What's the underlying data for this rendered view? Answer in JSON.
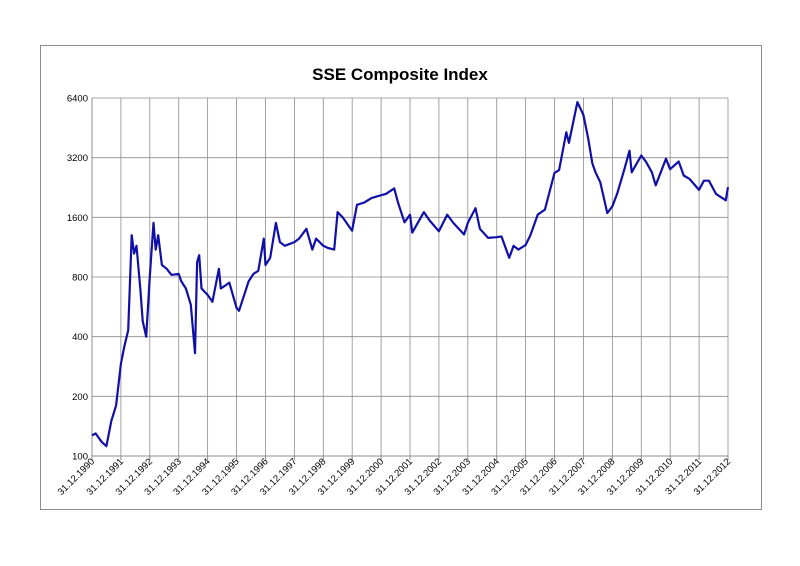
{
  "chart_data": {
    "type": "line",
    "title": "SSE Composite Index",
    "xlabel": "",
    "ylabel": "",
    "y_scale": "log2",
    "ylim": [
      100,
      6400
    ],
    "y_ticks": [
      100,
      200,
      400,
      800,
      1600,
      3200,
      6400
    ],
    "y_tick_labels": [
      "100",
      "200",
      "400",
      "800",
      "1600",
      "3200",
      "6400"
    ],
    "x_tick_labels": [
      "31.12.1990",
      "31.12.1991",
      "31.12.1992",
      "31.12.1993",
      "31.12.1994",
      "31.12.1995",
      "31.12.1996",
      "31.12.1997",
      "31.12.1998",
      "31.12.1999",
      "31.12.2000",
      "31.12.2001",
      "31.12.2002",
      "31.12.2003",
      "31.12.2004",
      "31.12.2005",
      "31.12.2006",
      "31.12.2007",
      "31.12.2008",
      "31.12.2009",
      "31.12.2010",
      "31.12.2011",
      "31.12.2012"
    ],
    "xlim": [
      "1990-12-31",
      "2012-12-31"
    ],
    "grid": true,
    "legend": "none",
    "color": "#1010a8",
    "series": [
      {
        "points": [
          [
            "1990-12-31",
            127
          ],
          [
            "1991-02-15",
            130
          ],
          [
            "1991-05-01",
            118
          ],
          [
            "1991-07-01",
            112
          ],
          [
            "1991-09-01",
            150
          ],
          [
            "1991-11-01",
            180
          ],
          [
            "1991-12-31",
            292
          ],
          [
            "1992-02-15",
            360
          ],
          [
            "1992-04-01",
            430
          ],
          [
            "1992-05-15",
            1300
          ],
          [
            "1992-06-15",
            1050
          ],
          [
            "1992-07-15",
            1150
          ],
          [
            "1992-09-01",
            700
          ],
          [
            "1992-10-01",
            480
          ],
          [
            "1992-11-15",
            400
          ],
          [
            "1993-01-01",
            820
          ],
          [
            "1993-02-15",
            1500
          ],
          [
            "1993-03-15",
            1100
          ],
          [
            "1993-04-15",
            1300
          ],
          [
            "1993-06-01",
            920
          ],
          [
            "1993-08-01",
            880
          ],
          [
            "1993-10-01",
            820
          ],
          [
            "1993-12-31",
            830
          ],
          [
            "1994-02-01",
            760
          ],
          [
            "1994-04-01",
            700
          ],
          [
            "1994-06-01",
            580
          ],
          [
            "1994-07-25",
            330
          ],
          [
            "1994-08-20",
            950
          ],
          [
            "1994-09-15",
            1030
          ],
          [
            "1994-10-15",
            700
          ],
          [
            "1994-12-31",
            650
          ],
          [
            "1995-03-01",
            600
          ],
          [
            "1995-05-22",
            880
          ],
          [
            "1995-06-15",
            700
          ],
          [
            "1995-08-01",
            720
          ],
          [
            "1995-10-01",
            750
          ],
          [
            "1995-12-31",
            560
          ],
          [
            "1996-02-01",
            540
          ],
          [
            "1996-04-01",
            640
          ],
          [
            "1996-06-01",
            760
          ],
          [
            "1996-08-01",
            830
          ],
          [
            "1996-10-01",
            860
          ],
          [
            "1996-12-10",
            1250
          ],
          [
            "1996-12-31",
            920
          ],
          [
            "1997-03-01",
            1000
          ],
          [
            "1997-05-12",
            1500
          ],
          [
            "1997-07-01",
            1200
          ],
          [
            "1997-09-01",
            1150
          ],
          [
            "1997-12-31",
            1200
          ],
          [
            "1998-03-01",
            1250
          ],
          [
            "1998-06-01",
            1400
          ],
          [
            "1998-08-15",
            1100
          ],
          [
            "1998-10-01",
            1250
          ],
          [
            "1998-12-31",
            1150
          ],
          [
            "1999-03-01",
            1120
          ],
          [
            "1999-05-18",
            1100
          ],
          [
            "1999-06-30",
            1700
          ],
          [
            "1999-09-01",
            1600
          ],
          [
            "1999-12-31",
            1370
          ],
          [
            "2000-03-01",
            1850
          ],
          [
            "2000-06-01",
            1900
          ],
          [
            "2000-09-01",
            2000
          ],
          [
            "2000-12-31",
            2070
          ],
          [
            "2001-03-01",
            2100
          ],
          [
            "2001-06-14",
            2240
          ],
          [
            "2001-08-01",
            1900
          ],
          [
            "2001-10-22",
            1510
          ],
          [
            "2001-12-31",
            1650
          ],
          [
            "2002-01-29",
            1340
          ],
          [
            "2002-06-25",
            1700
          ],
          [
            "2002-09-01",
            1550
          ],
          [
            "2002-12-31",
            1360
          ],
          [
            "2003-04-15",
            1650
          ],
          [
            "2003-07-01",
            1500
          ],
          [
            "2003-11-15",
            1310
          ],
          [
            "2003-12-31",
            1500
          ],
          [
            "2004-04-07",
            1780
          ],
          [
            "2004-06-01",
            1400
          ],
          [
            "2004-09-13",
            1260
          ],
          [
            "2004-12-31",
            1270
          ],
          [
            "2005-03-01",
            1280
          ],
          [
            "2005-06-06",
            1000
          ],
          [
            "2005-08-01",
            1150
          ],
          [
            "2005-10-01",
            1100
          ],
          [
            "2005-12-31",
            1160
          ],
          [
            "2006-03-01",
            1300
          ],
          [
            "2006-06-01",
            1650
          ],
          [
            "2006-09-01",
            1750
          ],
          [
            "2006-12-31",
            2680
          ],
          [
            "2007-02-27",
            2770
          ],
          [
            "2007-05-29",
            4300
          ],
          [
            "2007-07-01",
            3800
          ],
          [
            "2007-10-16",
            6100
          ],
          [
            "2007-12-31",
            5260
          ],
          [
            "2008-03-01",
            4000
          ],
          [
            "2008-04-22",
            3000
          ],
          [
            "2008-06-01",
            2700
          ],
          [
            "2008-08-01",
            2400
          ],
          [
            "2008-10-28",
            1680
          ],
          [
            "2008-12-31",
            1820
          ],
          [
            "2009-03-01",
            2100
          ],
          [
            "2009-06-01",
            2800
          ],
          [
            "2009-08-04",
            3470
          ],
          [
            "2009-09-01",
            2700
          ],
          [
            "2009-12-31",
            3280
          ],
          [
            "2010-03-01",
            3050
          ],
          [
            "2010-05-15",
            2700
          ],
          [
            "2010-07-02",
            2320
          ],
          [
            "2010-11-08",
            3160
          ],
          [
            "2010-12-31",
            2800
          ],
          [
            "2011-04-18",
            3060
          ],
          [
            "2011-06-20",
            2600
          ],
          [
            "2011-09-01",
            2500
          ],
          [
            "2011-12-31",
            2200
          ],
          [
            "2012-03-01",
            2450
          ],
          [
            "2012-05-04",
            2450
          ],
          [
            "2012-08-01",
            2100
          ],
          [
            "2012-12-03",
            1950
          ],
          [
            "2012-12-31",
            2270
          ]
        ]
      }
    ]
  }
}
